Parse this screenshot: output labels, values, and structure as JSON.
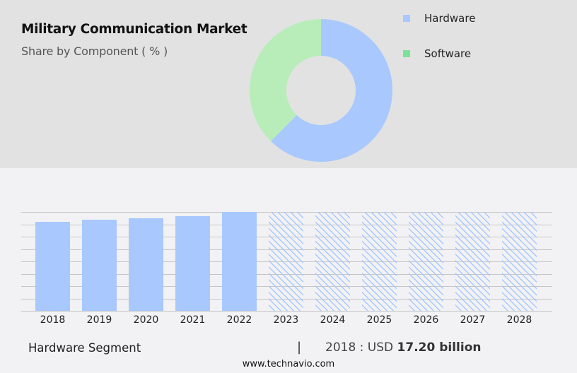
{
  "header": {
    "title": "Military Communication Market",
    "subtitle": "Share by Component ( % )"
  },
  "legend": {
    "items": [
      {
        "label": "Hardware",
        "color": "#a8c8fe"
      },
      {
        "label": "Software",
        "color": "#7ae39b"
      }
    ]
  },
  "colors": {
    "top_panel_bg": "#e2e2e2",
    "page_bg": "#f2f2f4",
    "hardware": "#a8c8fe",
    "software_donut": "#b8edb9",
    "software_legend": "#7ae39b",
    "gridline": "#c6c6c6"
  },
  "footer": {
    "segment_label": "Hardware Segment",
    "separator": "|",
    "year_prefix": "2018 : USD ",
    "value": "17.20 billion",
    "url": "www.technavio.com"
  },
  "chart_data": [
    {
      "type": "pie",
      "subtype": "donut",
      "title": "Military Communication Market",
      "subtitle": "Share by Component ( % )",
      "categories": [
        "Hardware",
        "Software"
      ],
      "values": [
        62.4,
        37.6
      ],
      "colors": [
        "#a8c8fe",
        "#b8edb9"
      ],
      "legend_position": "right"
    },
    {
      "type": "bar",
      "title": "Hardware Segment",
      "categories": [
        "2018",
        "2019",
        "2020",
        "2021",
        "2022",
        "2023",
        "2024",
        "2025",
        "2026",
        "2027",
        "2028"
      ],
      "series": [
        {
          "name": "Hardware",
          "values": [
            17.2,
            17.61,
            17.88,
            18.29,
            19.11,
            null,
            null,
            null,
            null,
            null,
            null
          ],
          "forecast": [
            false,
            false,
            false,
            false,
            false,
            true,
            true,
            true,
            true,
            true,
            true
          ]
        }
      ],
      "annotation": "2018 : USD 17.20 billion",
      "xlabel": "",
      "ylabel": "",
      "grid": true,
      "gridlines": 9,
      "unit": "USD billion"
    }
  ]
}
